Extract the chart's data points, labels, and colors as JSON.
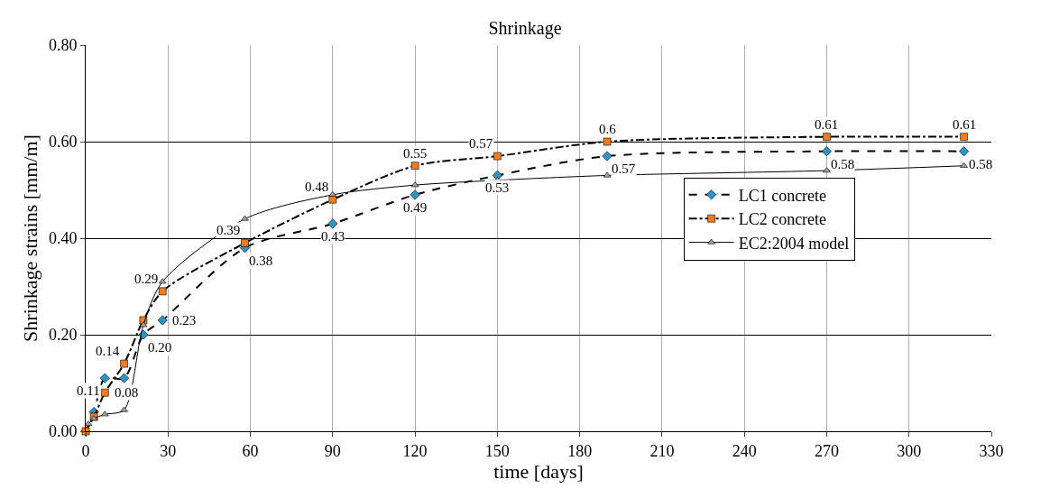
{
  "chart_data": {
    "type": "line",
    "title": "Shrinkage",
    "xlabel": "time [days]",
    "ylabel": "Shrinkage strains [mm/m]",
    "xlim": [
      0,
      330
    ],
    "xticks": [
      0,
      30,
      60,
      90,
      120,
      150,
      180,
      210,
      240,
      270,
      300,
      330
    ],
    "ylim": [
      0,
      0.8
    ],
    "yticks": [
      {
        "value": 0,
        "label": "0.00"
      },
      {
        "value": 0.2,
        "label": "0.20"
      },
      {
        "value": 0.4,
        "label": "0.40"
      },
      {
        "value": 0.6,
        "label": "0.60"
      },
      {
        "value": 0.8,
        "label": "0.80"
      }
    ],
    "grid": true,
    "legend": "right",
    "series": [
      {
        "name": "LC1 concrete",
        "color": "#2e93c9",
        "marker": "diamond",
        "line_style": "dashed",
        "x": [
          0,
          3,
          7,
          14,
          21,
          28,
          58,
          90,
          120,
          150,
          190,
          270,
          320
        ],
        "values": [
          0,
          0.04,
          0.11,
          0.11,
          0.2,
          0.23,
          0.38,
          0.43,
          0.49,
          0.53,
          0.57,
          0.58,
          0.58
        ],
        "value_labels": [
          null,
          null,
          "0.11",
          null,
          "0.20",
          "0.23",
          "0.38",
          "0.43",
          "0.49",
          "0.53",
          "0.57",
          "0.58",
          "0.58"
        ]
      },
      {
        "name": "LC2 concrete",
        "color": "#f47c20",
        "marker": "square",
        "line_style": "dashdot",
        "x": [
          0,
          3,
          7,
          14,
          21,
          28,
          58,
          90,
          120,
          150,
          190,
          270,
          320
        ],
        "values": [
          0,
          0.03,
          0.08,
          0.14,
          0.23,
          0.29,
          0.39,
          0.48,
          0.55,
          0.57,
          0.6,
          0.61,
          0.61
        ],
        "value_labels": [
          null,
          null,
          "0.08",
          "0.14",
          null,
          "0.29",
          "0.39",
          "0.48",
          "0.55",
          "0.57",
          "0.6",
          "0.61",
          "0.61"
        ]
      },
      {
        "name": "EC2:2004 model",
        "color": "#a0a0a0",
        "marker": "triangle",
        "line_style": "solid",
        "x": [
          1,
          3,
          7,
          14,
          21,
          28,
          58,
          90,
          120,
          150,
          190,
          270,
          320
        ],
        "values": [
          0.015,
          0.026,
          0.035,
          0.044,
          0.22,
          0.31,
          0.44,
          0.49,
          0.51,
          0.52,
          0.53,
          0.54,
          0.55
        ]
      }
    ]
  }
}
